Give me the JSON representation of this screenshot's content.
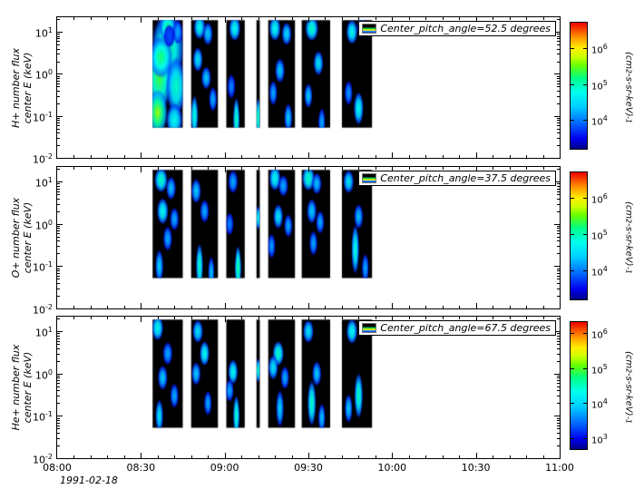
{
  "figure": {
    "background": "#ffffff"
  },
  "chart_data": {
    "type": "heatmap",
    "title": "",
    "legend_position": "top-right",
    "colormap": "rainbow",
    "x": {
      "label": "",
      "date": "1991-02-18",
      "range_hours": [
        8,
        11
      ],
      "major_ticks": [
        {
          "h": 8.0,
          "label": "08:00"
        },
        {
          "h": 8.5,
          "label": "08:30"
        },
        {
          "h": 9.0,
          "label": "09:00"
        },
        {
          "h": 9.5,
          "label": "09:30"
        },
        {
          "h": 10.0,
          "label": "10:00"
        },
        {
          "h": 10.5,
          "label": "10:30"
        },
        {
          "h": 11.0,
          "label": "11:00"
        }
      ],
      "minor_step_hours": 0.1
    },
    "y": {
      "scale": "log",
      "log_range": [
        -2,
        1.35
      ],
      "major_tick_exponents": [
        -2,
        -1,
        0,
        1
      ]
    },
    "strip_energy_log_range": [
      -1.28,
      1.28
    ],
    "strips_hours": [
      [
        8.57,
        8.75
      ],
      [
        8.8,
        8.96
      ],
      [
        9.01,
        9.12
      ],
      [
        9.19,
        9.21
      ],
      [
        9.26,
        9.42
      ],
      [
        9.46,
        9.63
      ],
      [
        9.7,
        9.88
      ]
    ],
    "blob_format": "[hour, energy_keV, intensity_0to1, time_radius_hours, log10_energy_radius]",
    "panels": [
      {
        "species": "H+",
        "pitch_angle_degrees": 52.5,
        "ylabel_line1": "H+ number flux",
        "ylabel_line2": "center E (keV)",
        "legend": "Center_pitch_angle=52.5 degrees",
        "colorbar": {
          "units": "(cm^2-s-sr-keV)^-1",
          "tick_exponents": [
            4,
            5,
            6
          ],
          "log_range": [
            3.2,
            6.7
          ]
        },
        "blobs": [
          [
            8.66,
            4,
            0.55,
            0.1,
            0.9
          ],
          [
            8.61,
            0.8,
            0.62,
            0.08,
            0.8
          ],
          [
            8.6,
            0.12,
            0.7,
            0.06,
            0.55
          ],
          [
            8.71,
            0.5,
            0.5,
            0.06,
            0.7
          ],
          [
            8.66,
            13,
            0.55,
            0.05,
            0.35
          ],
          [
            8.62,
            2.5,
            0.58,
            0.07,
            0.5
          ],
          [
            8.72,
            10,
            0.3,
            0.03,
            0.3
          ],
          [
            8.67,
            8,
            0.18,
            0.035,
            0.28
          ],
          [
            8.7,
            0.08,
            0.45,
            0.05,
            0.4
          ],
          [
            8.85,
            13,
            0.45,
            0.035,
            0.3
          ],
          [
            8.9,
            9,
            0.35,
            0.03,
            0.28
          ],
          [
            8.84,
            2.2,
            0.4,
            0.03,
            0.3
          ],
          [
            8.89,
            0.8,
            0.35,
            0.03,
            0.28
          ],
          [
            8.82,
            0.1,
            0.48,
            0.022,
            0.5
          ],
          [
            8.93,
            0.25,
            0.3,
            0.025,
            0.3
          ],
          [
            9.06,
            12,
            0.45,
            0.035,
            0.3
          ],
          [
            9.04,
            0.5,
            0.25,
            0.025,
            0.3
          ],
          [
            9.07,
            0.08,
            0.52,
            0.02,
            0.55
          ],
          [
            9.2,
            0.09,
            0.55,
            0.012,
            0.5
          ],
          [
            9.3,
            12,
            0.45,
            0.035,
            0.3
          ],
          [
            9.37,
            9,
            0.38,
            0.03,
            0.28
          ],
          [
            9.33,
            1.2,
            0.35,
            0.03,
            0.3
          ],
          [
            9.29,
            0.35,
            0.3,
            0.025,
            0.3
          ],
          [
            9.38,
            0.09,
            0.35,
            0.025,
            0.35
          ],
          [
            9.52,
            12,
            0.5,
            0.04,
            0.3
          ],
          [
            9.56,
            1.8,
            0.4,
            0.03,
            0.3
          ],
          [
            9.5,
            0.3,
            0.35,
            0.025,
            0.3
          ],
          [
            9.58,
            0.07,
            0.3,
            0.022,
            0.35
          ],
          [
            9.76,
            10,
            0.45,
            0.035,
            0.3
          ],
          [
            9.82,
            13,
            0.3,
            0.03,
            0.25
          ],
          [
            9.8,
            0.15,
            0.45,
            0.03,
            0.4
          ],
          [
            9.74,
            0.35,
            0.28,
            0.025,
            0.3
          ]
        ]
      },
      {
        "species": "O+",
        "pitch_angle_degrees": 37.5,
        "ylabel_line1": "O+ number flux",
        "ylabel_line2": "center E (keV)",
        "legend": "Center_pitch_angle=37.5 degrees",
        "colorbar": {
          "units": "(cm^2-s-sr-keV)^-1",
          "tick_exponents": [
            4,
            5,
            6
          ],
          "log_range": [
            3.2,
            6.7
          ]
        },
        "blobs": [
          [
            8.62,
            11,
            0.5,
            0.04,
            0.3
          ],
          [
            8.68,
            7,
            0.33,
            0.03,
            0.28
          ],
          [
            8.63,
            2,
            0.45,
            0.035,
            0.32
          ],
          [
            8.7,
            1.3,
            0.3,
            0.028,
            0.28
          ],
          [
            8.66,
            0.45,
            0.3,
            0.028,
            0.3
          ],
          [
            8.61,
            0.1,
            0.36,
            0.025,
            0.4
          ],
          [
            8.83,
            6,
            0.35,
            0.03,
            0.3
          ],
          [
            8.88,
            2,
            0.3,
            0.028,
            0.28
          ],
          [
            8.85,
            0.1,
            0.5,
            0.022,
            0.55
          ],
          [
            8.92,
            0.07,
            0.33,
            0.02,
            0.4
          ],
          [
            9.05,
            10,
            0.3,
            0.03,
            0.28
          ],
          [
            9.03,
            1,
            0.25,
            0.025,
            0.28
          ],
          [
            9.08,
            0.09,
            0.55,
            0.02,
            0.55
          ],
          [
            9.2,
            1.4,
            0.45,
            0.012,
            0.3
          ],
          [
            9.3,
            12,
            0.45,
            0.035,
            0.3
          ],
          [
            9.35,
            8,
            0.3,
            0.03,
            0.26
          ],
          [
            9.32,
            1.5,
            0.4,
            0.03,
            0.3
          ],
          [
            9.38,
            0.9,
            0.3,
            0.026,
            0.28
          ],
          [
            9.28,
            0.3,
            0.28,
            0.024,
            0.3
          ],
          [
            9.5,
            12,
            0.5,
            0.038,
            0.3
          ],
          [
            9.55,
            9,
            0.33,
            0.03,
            0.26
          ],
          [
            9.52,
            2,
            0.35,
            0.03,
            0.3
          ],
          [
            9.57,
            1.1,
            0.3,
            0.026,
            0.28
          ],
          [
            9.53,
            0.35,
            0.3,
            0.025,
            0.3
          ],
          [
            9.74,
            10,
            0.4,
            0.032,
            0.28
          ],
          [
            9.8,
            1.5,
            0.33,
            0.028,
            0.3
          ],
          [
            9.78,
            0.25,
            0.46,
            0.024,
            0.6
          ],
          [
            9.84,
            0.09,
            0.3,
            0.022,
            0.35
          ]
        ]
      },
      {
        "species": "He+",
        "pitch_angle_degrees": 67.5,
        "ylabel_line1": "He+ number flux",
        "ylabel_line2": "center E (keV)",
        "legend": "Center_pitch_angle=67.5 degrees",
        "colorbar": {
          "units": "(cm^2-s-sr-keV)^-1",
          "tick_exponents": [
            3,
            4,
            5,
            6
          ],
          "log_range": [
            2.7,
            6.3
          ]
        },
        "blobs": [
          [
            8.6,
            12,
            0.45,
            0.035,
            0.3
          ],
          [
            8.66,
            3,
            0.3,
            0.03,
            0.28
          ],
          [
            8.63,
            0.8,
            0.35,
            0.03,
            0.3
          ],
          [
            8.7,
            0.3,
            0.3,
            0.026,
            0.3
          ],
          [
            8.61,
            0.1,
            0.4,
            0.024,
            0.4
          ],
          [
            8.84,
            10,
            0.4,
            0.032,
            0.28
          ],
          [
            8.88,
            3,
            0.45,
            0.03,
            0.3
          ],
          [
            8.83,
            1,
            0.35,
            0.028,
            0.28
          ],
          [
            8.9,
            0.2,
            0.3,
            0.024,
            0.3
          ],
          [
            9.05,
            1.1,
            0.45,
            0.03,
            0.3
          ],
          [
            9.07,
            0.1,
            0.5,
            0.02,
            0.5
          ],
          [
            9.03,
            0.4,
            0.3,
            0.025,
            0.28
          ],
          [
            9.2,
            1.2,
            0.5,
            0.012,
            0.3
          ],
          [
            9.32,
            3,
            0.5,
            0.034,
            0.3
          ],
          [
            9.29,
            1.4,
            0.4,
            0.03,
            0.3
          ],
          [
            9.36,
            0.8,
            0.3,
            0.026,
            0.28
          ],
          [
            9.33,
            0.15,
            0.36,
            0.024,
            0.45
          ],
          [
            9.5,
            10,
            0.4,
            0.032,
            0.28
          ],
          [
            9.55,
            1,
            0.35,
            0.028,
            0.3
          ],
          [
            9.52,
            0.2,
            0.5,
            0.026,
            0.55
          ],
          [
            9.58,
            0.09,
            0.33,
            0.022,
            0.35
          ],
          [
            9.76,
            10,
            0.45,
            0.034,
            0.3
          ],
          [
            9.8,
            0.3,
            0.5,
            0.026,
            0.55
          ],
          [
            9.74,
            0.15,
            0.35,
            0.024,
            0.35
          ]
        ]
      }
    ]
  }
}
